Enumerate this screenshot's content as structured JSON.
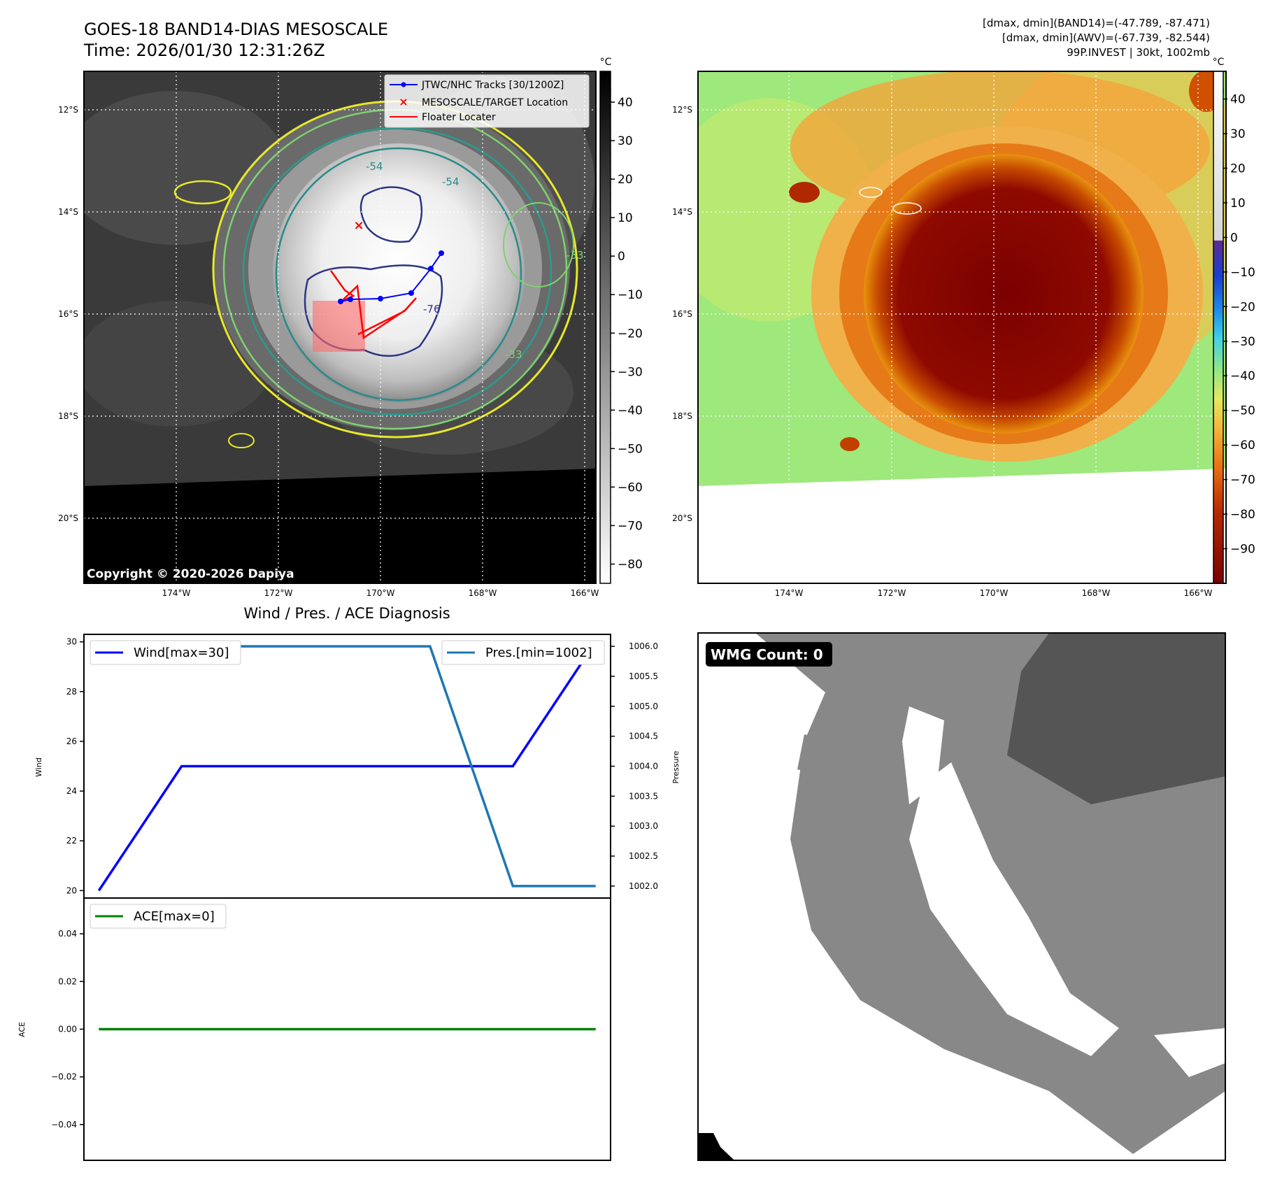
{
  "header": {
    "title": "GOES-18 BAND14-DIAS MESOSCALE",
    "time": "Time: 2026/01/30 12:31:26Z",
    "info_line1": "[dmax, dmin](BAND14)=(-47.789, -87.471)",
    "info_line2": "[dmax, dmin](AWV)=(-67.739, -82.544)",
    "info_line3": "99P.INVEST | 30kt, 1002mb"
  },
  "map_axes": {
    "lat_labels": [
      "12°S",
      "14°S",
      "16°S",
      "18°S",
      "20°S"
    ],
    "lon_labels": [
      "174°W",
      "172°W",
      "170°W",
      "168°W",
      "166°W"
    ]
  },
  "ir_panel": {
    "copyright": "Copyright © 2020-2026 Dapiya",
    "legend": [
      "JTWC/NHC Tracks [30/1200Z]",
      "MESOSCALE/TARGET Location",
      "Floater Locater"
    ],
    "contour_labels": [
      "-54",
      "-54",
      "-76",
      "-33",
      "-33"
    ],
    "colorbar_unit": "°C",
    "colorbar_ticks": [
      "40",
      "30",
      "20",
      "10",
      "0",
      "−10",
      "−20",
      "−30",
      "−40",
      "−50",
      "−60",
      "−70",
      "−80"
    ]
  },
  "awv_panel": {
    "colorbar_unit": "°C",
    "colorbar_ticks": [
      "40",
      "30",
      "20",
      "10",
      "0",
      "−10",
      "−20",
      "−30",
      "−40",
      "−50",
      "−60",
      "−70",
      "−80",
      "−90"
    ]
  },
  "diag_panel": {
    "title": "Wind / Pres. / ACE Diagnosis",
    "wind_axis_label": "Wind",
    "pressure_axis_label": "Pressure",
    "ace_axis_label": "ACE",
    "wind_ticks": [
      "30",
      "28",
      "26",
      "24",
      "22",
      "20"
    ],
    "pressure_ticks": [
      "1006.0",
      "1005.5",
      "1005.0",
      "1004.5",
      "1004.0",
      "1003.5",
      "1003.0",
      "1002.5",
      "1002.0"
    ],
    "ace_ticks": [
      "0.04",
      "0.02",
      "0.00",
      "−0.02",
      "−0.04"
    ],
    "wind_legend": "Wind[max=30]",
    "pressure_legend": "Pres.[min=1002]",
    "ace_legend": "ACE[max=0]"
  },
  "wmg_panel": {
    "badge": "WMG Count: 0"
  },
  "colors": {
    "wind": "#0000ff",
    "pressure": "#1f77b4",
    "ace": "#008000",
    "track": "#0000ff",
    "floater": "#ff0000",
    "target": "#ff0000"
  },
  "chart_data": [
    {
      "type": "line",
      "name": "wind-pressure",
      "x": [
        0,
        1,
        2,
        3,
        4,
        5,
        6
      ],
      "series": [
        {
          "name": "Wind[max=30]",
          "axis": "left",
          "values": [
            20,
            25,
            25,
            25,
            25,
            25,
            30
          ]
        },
        {
          "name": "Pres.[min=1002]",
          "axis": "right",
          "values": [
            1006,
            1006,
            1006,
            1006,
            1006,
            1002,
            1002
          ]
        }
      ],
      "ylim_left": [
        19.7,
        30.3
      ],
      "ylim_right": [
        1001.8,
        1006.2
      ],
      "xlabel": "",
      "ylabel_left": "Wind",
      "ylabel_right": "Pressure",
      "title": "Wind / Pres. / ACE Diagnosis"
    },
    {
      "type": "line",
      "name": "ace",
      "x": [
        0,
        1,
        2,
        3,
        4,
        5,
        6
      ],
      "series": [
        {
          "name": "ACE[max=0]",
          "values": [
            0,
            0,
            0,
            0,
            0,
            0,
            0
          ]
        }
      ],
      "ylim": [
        -0.055,
        0.055
      ],
      "ylabel": "ACE"
    }
  ]
}
